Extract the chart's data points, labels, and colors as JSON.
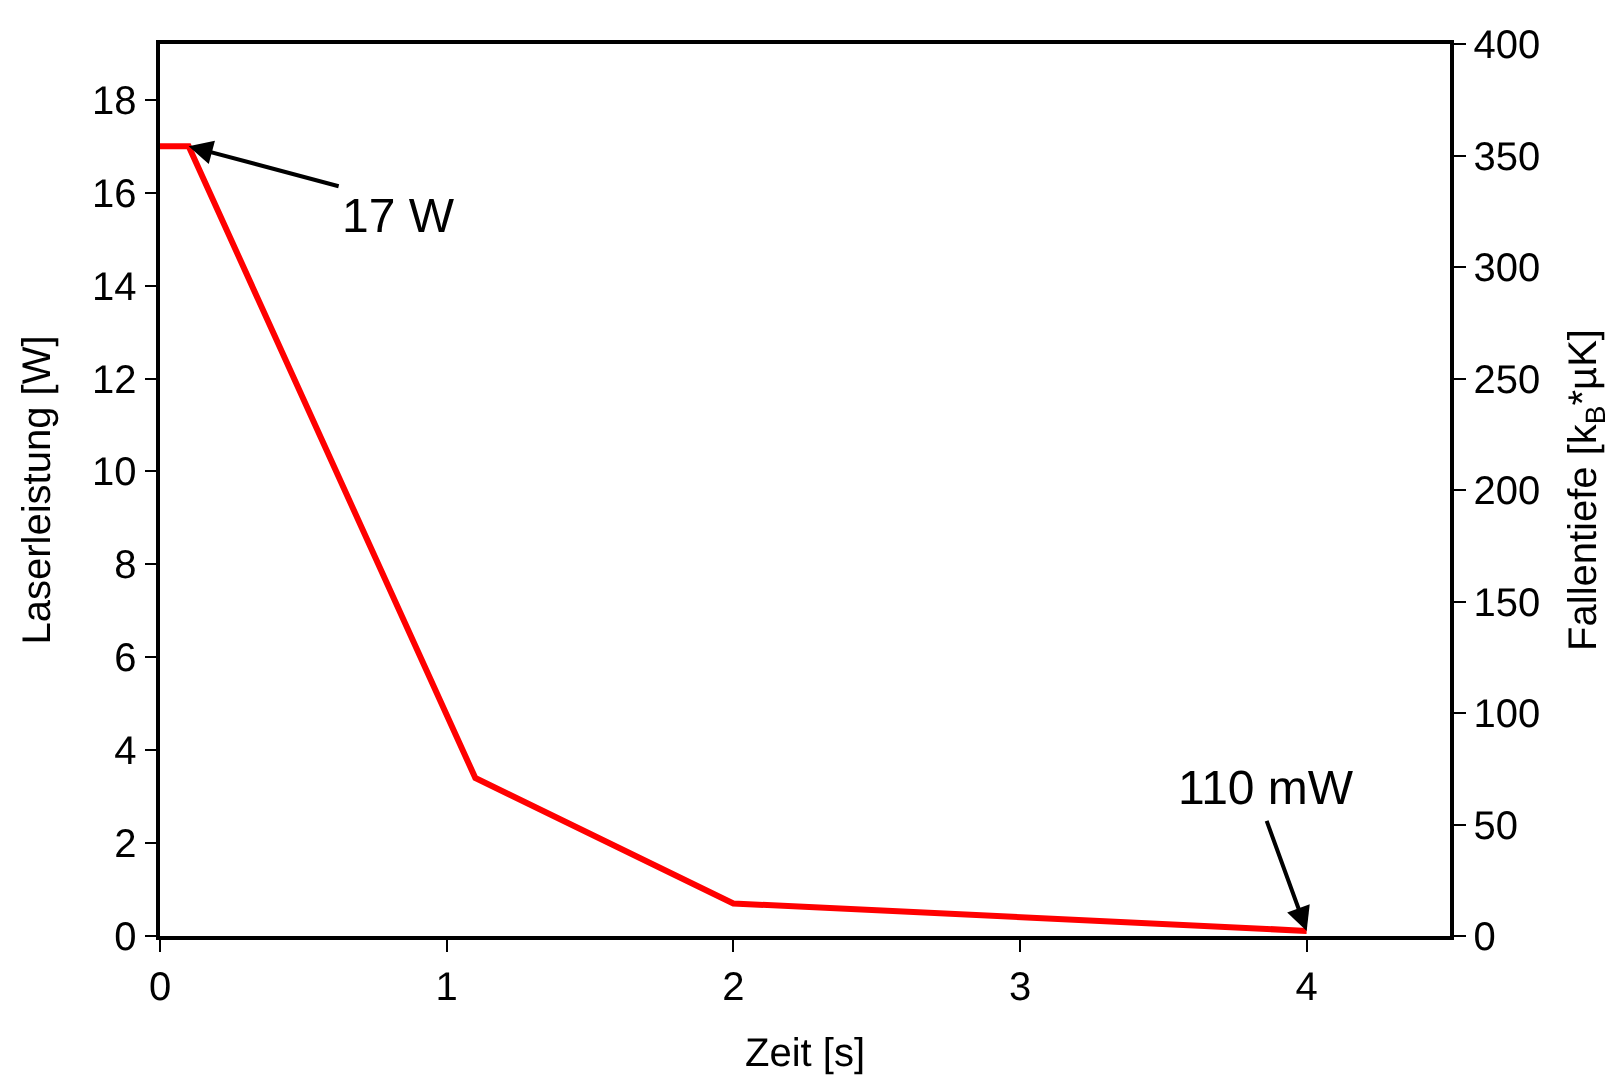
{
  "chart_data": {
    "type": "line",
    "xlabel": "Zeit [s]",
    "ylabel": "Laserleistung [W]",
    "y2label": "Fallentiefe [k$_{B}$*µK]",
    "x": [
      0,
      0.1,
      1.1,
      2,
      4
    ],
    "series": [
      {
        "color": "#ff0000",
        "values": [
          17,
          17,
          3.4,
          0.7,
          0.11
        ]
      }
    ],
    "xlim": [
      0,
      4.5
    ],
    "xticks": [
      0,
      1,
      2,
      3,
      4
    ],
    "ylim": [
      0,
      19.2
    ],
    "yticks": [
      0,
      2,
      4,
      6,
      8,
      10,
      12,
      14,
      16,
      18
    ],
    "y2lim": [
      0,
      400
    ],
    "y2ticks": [
      0,
      50,
      100,
      150,
      200,
      250,
      300,
      350,
      400
    ],
    "annotations": [
      {
        "text": "17 W",
        "x": 0.1,
        "y": 17
      },
      {
        "text": "110 mW",
        "x": 4,
        "y": 0.11
      }
    ],
    "legend": false,
    "marker": "none",
    "line_style": "solid"
  }
}
